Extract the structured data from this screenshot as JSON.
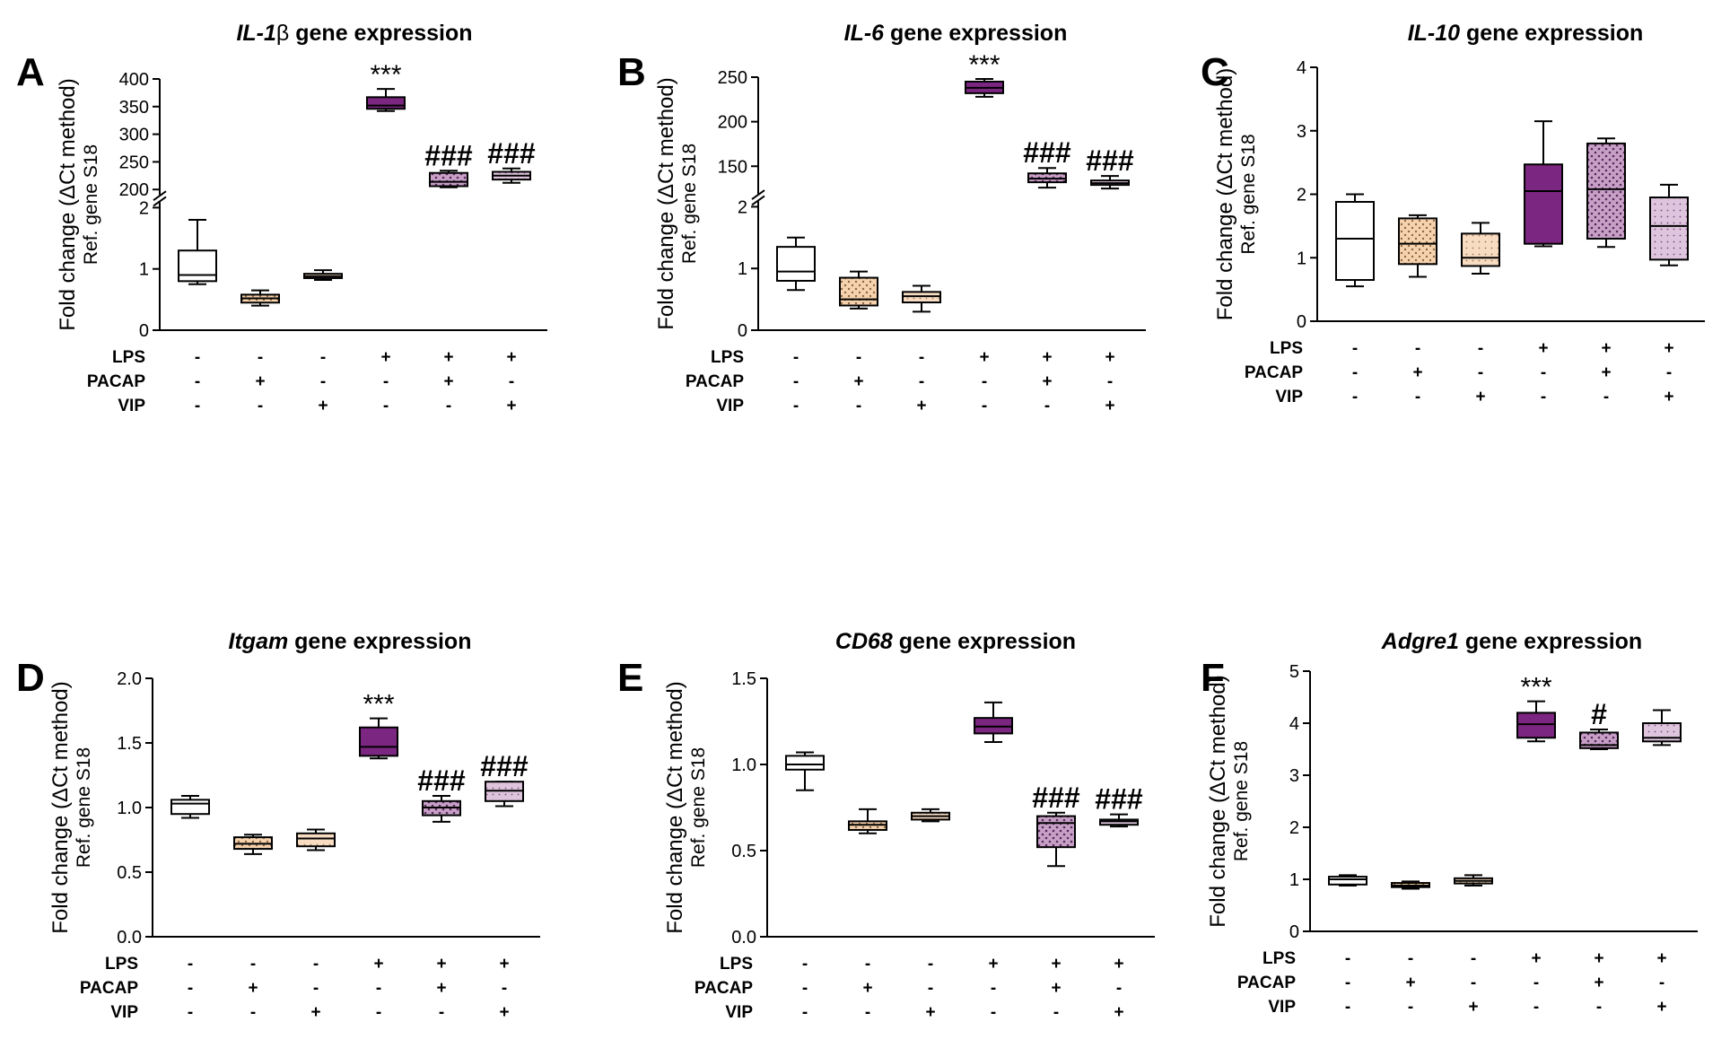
{
  "colors": {
    "ctrl": "#ffffff",
    "pacap": "#f6d2ad",
    "vip": "#f8dcc2",
    "lps": "#7b2680",
    "lps_pacap": "#c7a0c6",
    "lps_vip": "#dec5dd",
    "axis": "#000000"
  },
  "condition_rows": [
    "LPS",
    "PACAP",
    "VIP"
  ],
  "condition_marks": [
    [
      "-",
      "-",
      "-",
      "+",
      "+",
      "+"
    ],
    [
      "-",
      "+",
      "-",
      "-",
      "+",
      "-"
    ],
    [
      "-",
      "-",
      "+",
      "-",
      "-",
      "+"
    ]
  ],
  "chart_data": [
    {
      "type": "box",
      "panel": "A",
      "title_gene": "IL-1",
      "title_symbol": "β",
      "title_rest": " gene expression",
      "ylabel": "Fold change (ΔCt method)",
      "ylabel2": "Ref. gene S18",
      "broken_axis": true,
      "lower_ylim": [
        0,
        2
      ],
      "lower_ticks": [
        "0",
        "1",
        "2"
      ],
      "upper_ylim": [
        200,
        400
      ],
      "upper_ticks": [
        "200",
        "250",
        "300",
        "350",
        "400"
      ],
      "groups": [
        {
          "min": 0.75,
          "q1": 0.8,
          "median": 0.9,
          "q3": 1.3,
          "max": 1.8,
          "sig": ""
        },
        {
          "min": 0.4,
          "q1": 0.45,
          "median": 0.52,
          "q3": 0.58,
          "max": 0.65,
          "sig": ""
        },
        {
          "min": 0.82,
          "q1": 0.85,
          "median": 0.88,
          "q3": 0.92,
          "max": 0.98,
          "sig": ""
        },
        {
          "min": 342,
          "q1": 346,
          "median": 352,
          "q3": 367,
          "max": 382,
          "sig": "***"
        },
        {
          "min": 204,
          "q1": 206,
          "median": 214,
          "q3": 230,
          "max": 234,
          "sig": "###"
        },
        {
          "min": 212,
          "q1": 218,
          "median": 225,
          "q3": 232,
          "max": 238,
          "sig": "###"
        }
      ]
    },
    {
      "type": "box",
      "panel": "B",
      "title_gene": "IL-6",
      "title_symbol": "",
      "title_rest": " gene expression",
      "ylabel": "Fold change (ΔCt method)",
      "ylabel2": "Ref. gene S18",
      "broken_axis": true,
      "lower_ylim": [
        0,
        2
      ],
      "lower_ticks": [
        "0",
        "1",
        "2"
      ],
      "upper_ylim": [
        125,
        250
      ],
      "upper_ticks": [
        "150",
        "200",
        "250"
      ],
      "groups": [
        {
          "min": 0.65,
          "q1": 0.8,
          "median": 0.95,
          "q3": 1.35,
          "max": 1.5,
          "sig": ""
        },
        {
          "min": 0.35,
          "q1": 0.4,
          "median": 0.5,
          "q3": 0.85,
          "max": 0.95,
          "sig": ""
        },
        {
          "min": 0.3,
          "q1": 0.45,
          "median": 0.55,
          "q3": 0.62,
          "max": 0.72,
          "sig": ""
        },
        {
          "min": 228,
          "q1": 232,
          "median": 238,
          "q3": 245,
          "max": 248,
          "sig": "***"
        },
        {
          "min": 126,
          "q1": 132,
          "median": 136,
          "q3": 142,
          "max": 148,
          "sig": "###"
        },
        {
          "min": 125,
          "q1": 129,
          "median": 131,
          "q3": 134,
          "max": 139,
          "sig": "###"
        }
      ]
    },
    {
      "type": "box",
      "panel": "C",
      "title_gene": "IL-10",
      "title_symbol": "",
      "title_rest": " gene expression",
      "ylabel": "Fold change (ΔCt method)",
      "ylabel2": "Ref. gene S18",
      "broken_axis": false,
      "ylim": [
        0,
        4
      ],
      "yticks": [
        "0",
        "1",
        "2",
        "3",
        "4"
      ],
      "groups": [
        {
          "min": 0.55,
          "q1": 0.65,
          "median": 1.3,
          "q3": 1.88,
          "max": 2.0,
          "sig": ""
        },
        {
          "min": 0.7,
          "q1": 0.9,
          "median": 1.22,
          "q3": 1.62,
          "max": 1.67,
          "sig": ""
        },
        {
          "min": 0.75,
          "q1": 0.87,
          "median": 1.0,
          "q3": 1.38,
          "max": 1.55,
          "sig": ""
        },
        {
          "min": 1.18,
          "q1": 1.22,
          "median": 2.05,
          "q3": 2.47,
          "max": 3.15,
          "sig": ""
        },
        {
          "min": 1.17,
          "q1": 1.3,
          "median": 2.08,
          "q3": 2.8,
          "max": 2.88,
          "sig": ""
        },
        {
          "min": 0.88,
          "q1": 0.97,
          "median": 1.5,
          "q3": 1.95,
          "max": 2.15,
          "sig": ""
        }
      ]
    },
    {
      "type": "box",
      "panel": "D",
      "title_gene": "Itgam",
      "title_symbol": "",
      "title_rest": " gene expression",
      "ylabel": "Fold change (ΔCt method)",
      "ylabel2": "Ref. gene S18",
      "broken_axis": false,
      "ylim": [
        0,
        2
      ],
      "yticks": [
        "0.0",
        "0.5",
        "1.0",
        "1.5",
        "2.0"
      ],
      "groups": [
        {
          "min": 0.92,
          "q1": 0.95,
          "median": 1.03,
          "q3": 1.06,
          "max": 1.09,
          "sig": ""
        },
        {
          "min": 0.64,
          "q1": 0.68,
          "median": 0.72,
          "q3": 0.77,
          "max": 0.79,
          "sig": ""
        },
        {
          "min": 0.67,
          "q1": 0.7,
          "median": 0.76,
          "q3": 0.8,
          "max": 0.83,
          "sig": ""
        },
        {
          "min": 1.38,
          "q1": 1.4,
          "median": 1.47,
          "q3": 1.62,
          "max": 1.69,
          "sig": "***"
        },
        {
          "min": 0.89,
          "q1": 0.94,
          "median": 1.0,
          "q3": 1.05,
          "max": 1.09,
          "sig": "###"
        },
        {
          "min": 1.01,
          "q1": 1.05,
          "median": 1.13,
          "q3": 1.2,
          "max": 1.2,
          "sig": "###"
        }
      ]
    },
    {
      "type": "box",
      "panel": "E",
      "title_gene": "CD68",
      "title_symbol": "",
      "title_rest": " gene expression",
      "ylabel": "Fold change (ΔCt method)",
      "ylabel2": "Ref. gene S18",
      "broken_axis": false,
      "ylim": [
        0,
        1.5
      ],
      "yticks": [
        "0.0",
        "0.5",
        "1.0",
        "1.5"
      ],
      "groups": [
        {
          "min": 0.85,
          "q1": 0.97,
          "median": 1.0,
          "q3": 1.05,
          "max": 1.07,
          "sig": ""
        },
        {
          "min": 0.6,
          "q1": 0.62,
          "median": 0.65,
          "q3": 0.67,
          "max": 0.74,
          "sig": ""
        },
        {
          "min": 0.67,
          "q1": 0.68,
          "median": 0.7,
          "q3": 0.72,
          "max": 0.74,
          "sig": ""
        },
        {
          "min": 1.13,
          "q1": 1.18,
          "median": 1.22,
          "q3": 1.27,
          "max": 1.36,
          "sig": ""
        },
        {
          "min": 0.41,
          "q1": 0.52,
          "median": 0.66,
          "q3": 0.7,
          "max": 0.72,
          "sig": "###"
        },
        {
          "min": 0.64,
          "q1": 0.65,
          "median": 0.67,
          "q3": 0.68,
          "max": 0.71,
          "sig": "###"
        }
      ]
    },
    {
      "type": "box",
      "panel": "F",
      "title_gene": "Adgre1",
      "title_symbol": "",
      "title_rest": " gene expression",
      "ylabel": "Fold change (ΔCt method)",
      "ylabel2": "Ref. gene S18",
      "broken_axis": false,
      "ylim": [
        0,
        5
      ],
      "yticks": [
        "0",
        "1",
        "2",
        "3",
        "4",
        "5"
      ],
      "groups": [
        {
          "min": 0.88,
          "q1": 0.9,
          "median": 1.0,
          "q3": 1.05,
          "max": 1.08,
          "sig": ""
        },
        {
          "min": 0.82,
          "q1": 0.85,
          "median": 0.88,
          "q3": 0.93,
          "max": 0.96,
          "sig": ""
        },
        {
          "min": 0.88,
          "q1": 0.92,
          "median": 0.97,
          "q3": 1.02,
          "max": 1.08,
          "sig": ""
        },
        {
          "min": 3.65,
          "q1": 3.72,
          "median": 3.98,
          "q3": 4.2,
          "max": 4.42,
          "sig": "***"
        },
        {
          "min": 3.5,
          "q1": 3.52,
          "median": 3.58,
          "q3": 3.82,
          "max": 3.88,
          "sig": "#"
        },
        {
          "min": 3.58,
          "q1": 3.65,
          "median": 3.72,
          "q3": 4.0,
          "max": 4.25,
          "sig": ""
        }
      ]
    }
  ]
}
